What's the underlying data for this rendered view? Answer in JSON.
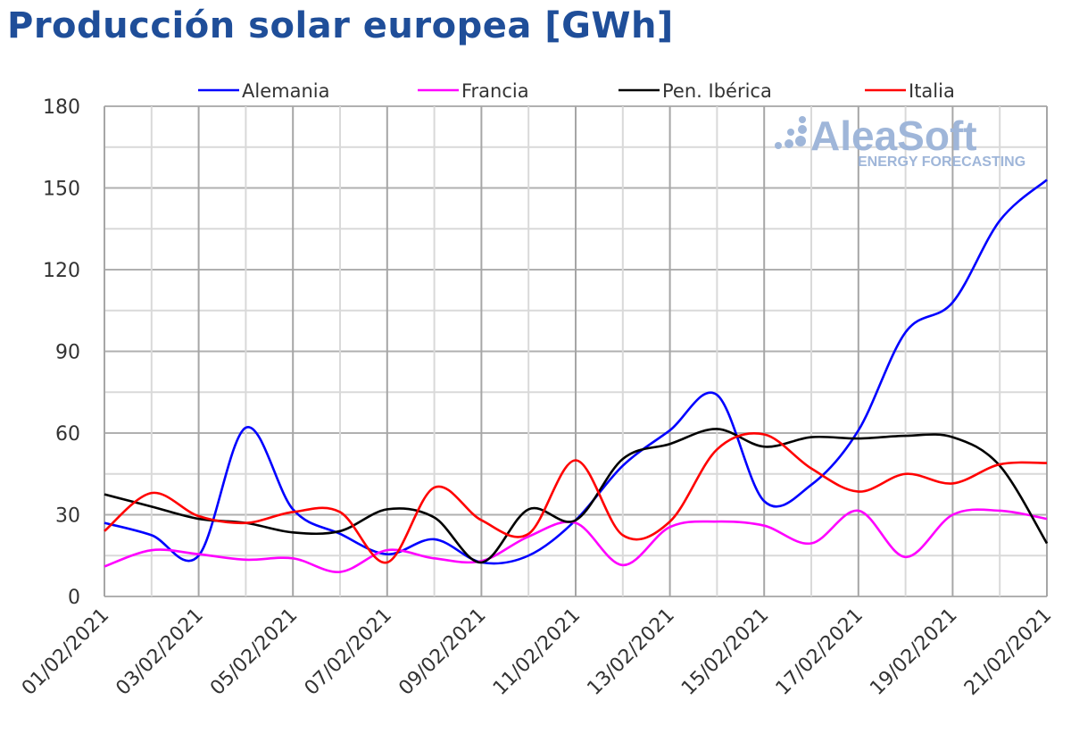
{
  "chart_data": {
    "type": "line",
    "title": "Producción solar europea [GWh]",
    "xlabel": "",
    "ylabel": "",
    "ylim": [
      0,
      180
    ],
    "yticks": [
      0,
      30,
      60,
      90,
      120,
      150,
      180
    ],
    "x": [
      "01/02/2021",
      "02/02/2021",
      "03/02/2021",
      "04/02/2021",
      "05/02/2021",
      "06/02/2021",
      "07/02/2021",
      "08/02/2021",
      "09/02/2021",
      "10/02/2021",
      "11/02/2021",
      "12/02/2021",
      "13/02/2021",
      "14/02/2021",
      "15/02/2021",
      "16/02/2021",
      "17/02/2021",
      "18/02/2021",
      "19/02/2021",
      "20/02/2021",
      "21/02/2021"
    ],
    "xtick_labels": [
      "01/02/2021",
      "03/02/2021",
      "05/02/2021",
      "07/02/2021",
      "09/02/2021",
      "11/02/2021",
      "13/02/2021",
      "15/02/2021",
      "17/02/2021",
      "19/02/2021",
      "21/02/2021"
    ],
    "grid": true,
    "legend_placement": "top",
    "series": [
      {
        "name": "Alemania",
        "color": "#0000ff",
        "values": [
          27,
          22.5,
          15,
          62,
          32,
          23,
          15.5,
          21,
          12.5,
          15,
          28,
          48,
          61,
          74,
          35,
          41,
          61,
          97,
          108,
          138,
          153
        ]
      },
      {
        "name": "Francia",
        "color": "#ff00ff",
        "values": [
          11,
          17,
          15.5,
          13.5,
          14,
          9,
          17,
          14,
          13,
          22,
          27,
          11.5,
          25.5,
          27.5,
          26,
          19.5,
          31.5,
          14.5,
          30,
          31.5,
          28.5
        ]
      },
      {
        "name": "Pen. Ibérica",
        "color": "#000000",
        "values": [
          37.5,
          33,
          28.5,
          27,
          23.5,
          24,
          32,
          29,
          12.5,
          32,
          28,
          50.5,
          56,
          61.5,
          55,
          58.5,
          58,
          59,
          58.5,
          48,
          19.5
        ]
      },
      {
        "name": "Italia",
        "color": "#ff0000",
        "values": [
          24,
          38,
          29.5,
          27,
          31,
          31,
          12.5,
          40,
          28,
          23,
          50,
          22.5,
          27.5,
          54,
          59.5,
          47,
          38.5,
          45,
          41.5,
          48.5,
          49
        ]
      }
    ]
  },
  "watermark": {
    "brand": "AleaSoft",
    "tagline": "ENERGY FORECASTING",
    "color": "#9fb6d9"
  }
}
